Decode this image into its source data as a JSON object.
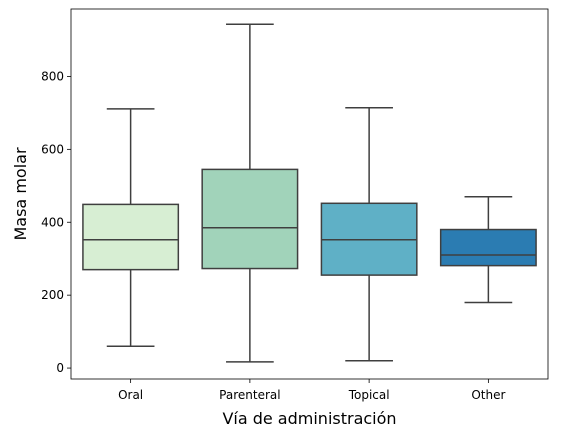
{
  "chart_data": {
    "type": "box",
    "title": "",
    "xlabel": "Vía de administración",
    "ylabel": "Masa molar",
    "categories": [
      "Oral",
      "Parenteral",
      "Topical",
      "Other"
    ],
    "ylim": [
      -30,
      985
    ],
    "yticks": [
      0,
      200,
      400,
      600,
      800
    ],
    "grid": false,
    "boxes": [
      {
        "category": "Oral",
        "whisker_low": 60,
        "q1": 270,
        "median": 352,
        "q3": 449,
        "whisker_high": 711,
        "color": "#d7eed3"
      },
      {
        "category": "Parenteral",
        "whisker_low": 17,
        "q1": 273,
        "median": 385,
        "q3": 545,
        "whisker_high": 943,
        "color": "#a1d3ba"
      },
      {
        "category": "Topical",
        "whisker_low": 20,
        "q1": 255,
        "median": 352,
        "q3": 452,
        "whisker_high": 714,
        "color": "#5fb0c6"
      },
      {
        "category": "Other",
        "whisker_low": 180,
        "q1": 281,
        "median": 310,
        "q3": 380,
        "whisker_high": 470,
        "color": "#2b7cb2"
      }
    ]
  }
}
